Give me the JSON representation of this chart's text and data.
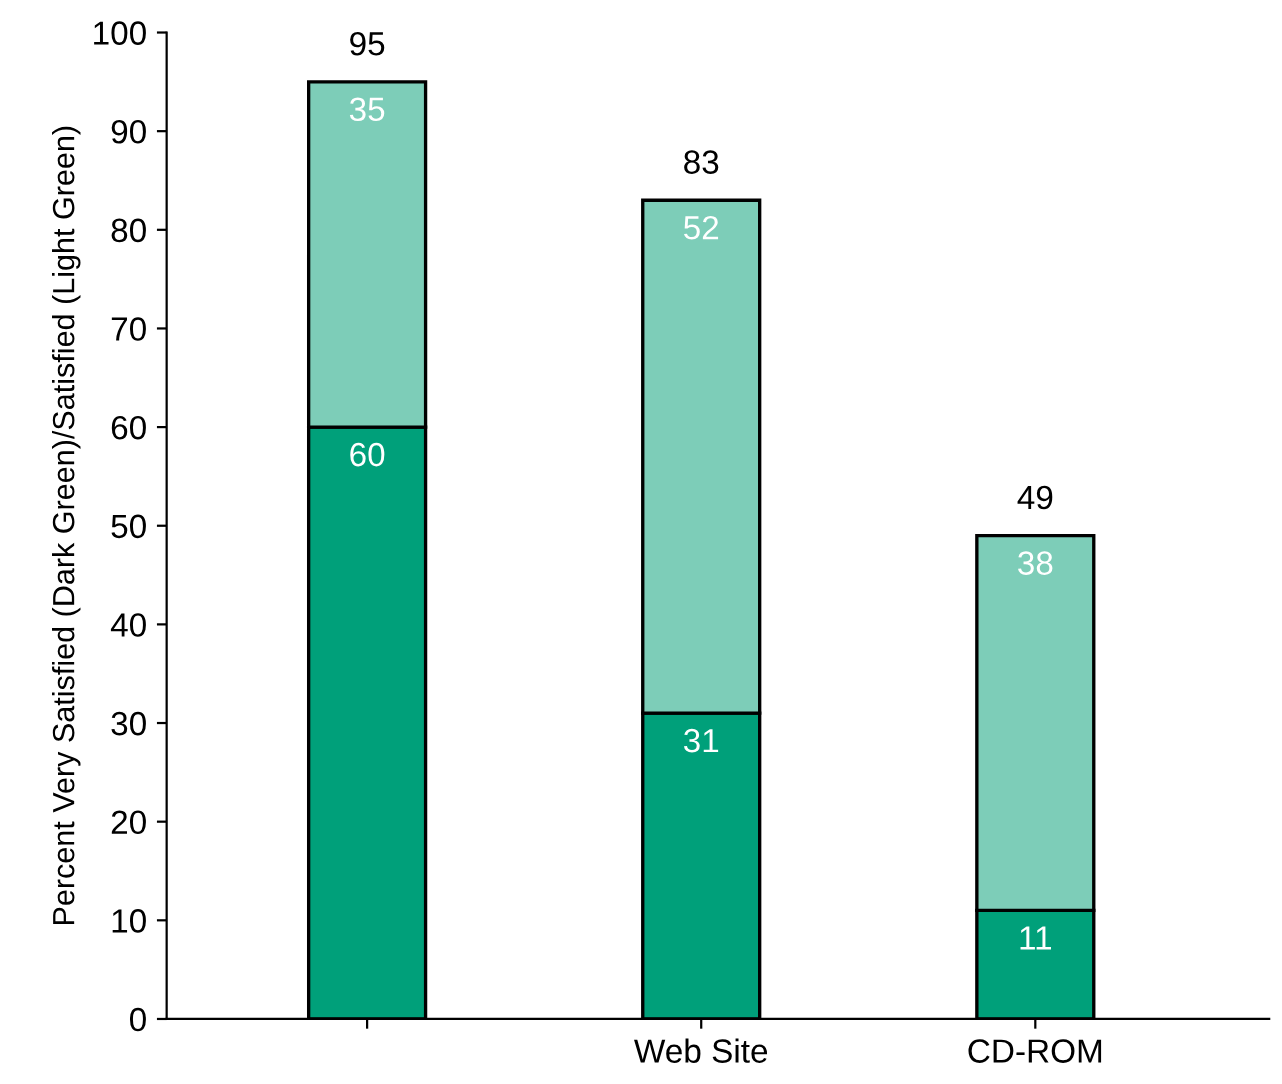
{
  "chart_data": {
    "type": "bar",
    "stacked": true,
    "ylabel": "Percent Very Satisfied (Dark Green)/Satisfied (Light Green)",
    "categories": [
      null,
      "Web Site",
      "CD-ROM"
    ],
    "series": [
      {
        "color": "#00a07a",
        "values": [
          60,
          31,
          11
        ]
      },
      {
        "color": "#7dcdb8",
        "values": [
          35,
          52,
          38
        ]
      }
    ],
    "data_labels": true,
    "totals": [
      "95",
      "83",
      "49"
    ],
    "ylim": [
      0,
      100
    ],
    "yticks": [
      0,
      10,
      20,
      30,
      40,
      50,
      60,
      70,
      80,
      90,
      100
    ],
    "grid": false
  }
}
